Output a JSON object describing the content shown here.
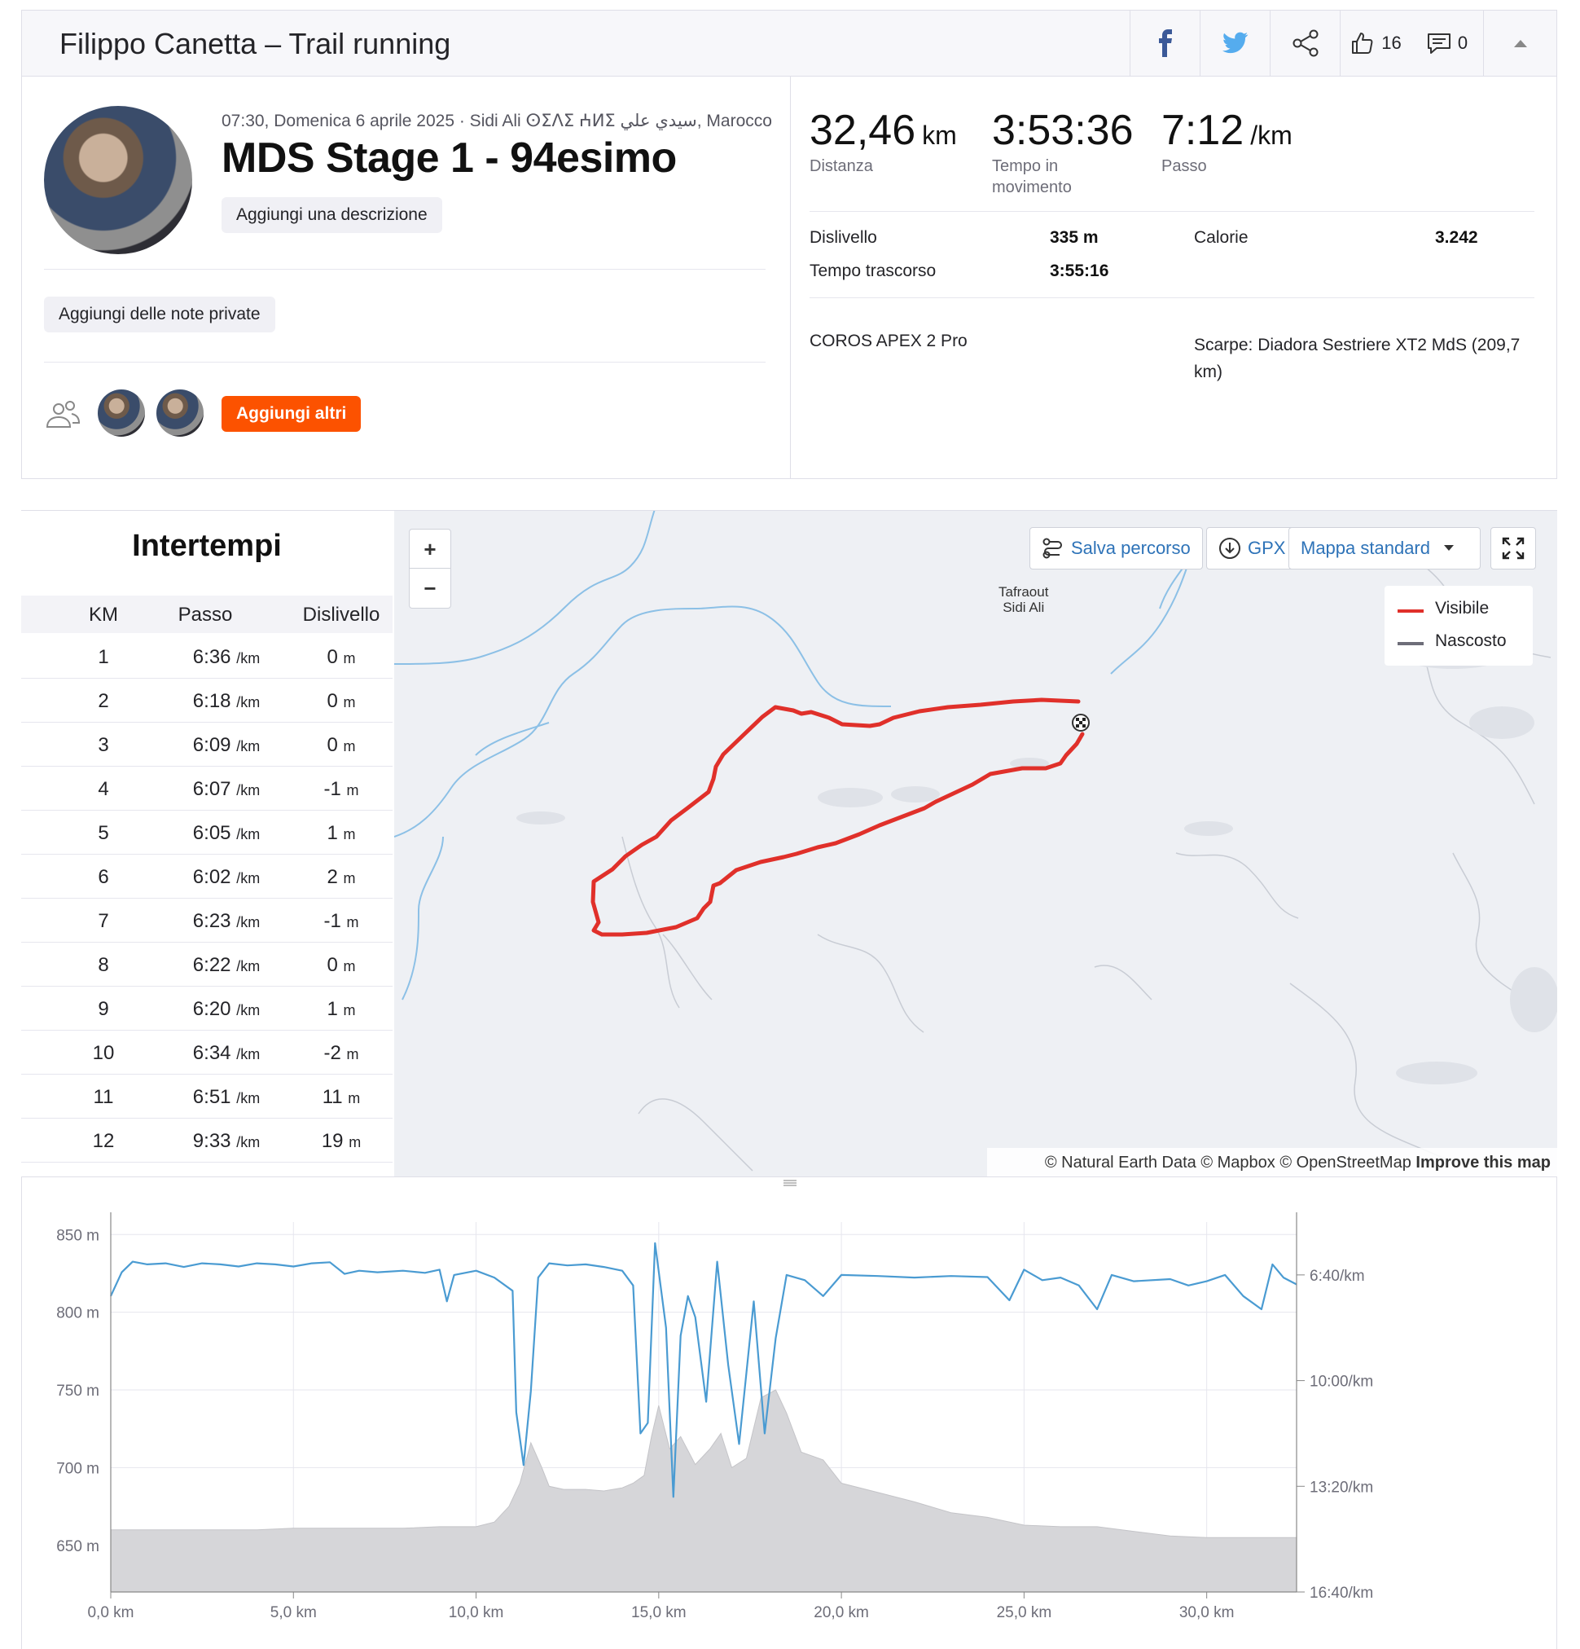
{
  "header": {
    "title": "Filippo Canetta – Trail running",
    "likes_count": "16",
    "comments_count": "0"
  },
  "activity": {
    "meta": "07:30, Domenica 6 aprile 2025 · Sidi Ali ⵙⵉⴷⵉ ⵄⵍⵉ سيدي علي, Marocco",
    "name": "MDS Stage 1 - 94esimo",
    "add_description_label": "Aggiungi una descrizione",
    "add_private_notes_label": "Aggiungi delle note private",
    "add_others_label": "Aggiungi altri"
  },
  "stats": {
    "distance": {
      "value": "32,46",
      "unit": "km",
      "label": "Distanza"
    },
    "moving_time": {
      "value": "3:53:36",
      "label_line1": "Tempo in",
      "label_line2": "movimento"
    },
    "pace": {
      "value": "7:12",
      "unit": "/km",
      "label": "Passo"
    },
    "elevation_label": "Dislivello",
    "elevation_value": "335 m",
    "calories_label": "Calorie",
    "calories_value": "3.242",
    "elapsed_label": "Tempo trascorso",
    "elapsed_value": "3:55:16",
    "device": "COROS APEX 2 Pro",
    "shoes_line1": "Scarpe: Diadora Sestriere XT2 MdS (209,7",
    "shoes_line2": "km)"
  },
  "splits": {
    "title": "Intertempi",
    "columns": {
      "km": "KM",
      "pace": "Passo",
      "elev": "Dislivello"
    },
    "pace_unit": "/km",
    "elev_unit": "m",
    "rows": [
      {
        "km": "1",
        "pace": "6:36",
        "elev": "0"
      },
      {
        "km": "2",
        "pace": "6:18",
        "elev": "0"
      },
      {
        "km": "3",
        "pace": "6:09",
        "elev": "0"
      },
      {
        "km": "4",
        "pace": "6:07",
        "elev": "-1"
      },
      {
        "km": "5",
        "pace": "6:05",
        "elev": "1"
      },
      {
        "km": "6",
        "pace": "6:02",
        "elev": "2"
      },
      {
        "km": "7",
        "pace": "6:23",
        "elev": "-1"
      },
      {
        "km": "8",
        "pace": "6:22",
        "elev": "0"
      },
      {
        "km": "9",
        "pace": "6:20",
        "elev": "1"
      },
      {
        "km": "10",
        "pace": "6:34",
        "elev": "-2"
      },
      {
        "km": "11",
        "pace": "6:51",
        "elev": "11"
      },
      {
        "km": "12",
        "pace": "9:33",
        "elev": "19"
      }
    ]
  },
  "map": {
    "save_route_label": "Salva percorso",
    "gpx_label": "GPX",
    "map_style_label": "Mappa standard",
    "zoom_in": "+",
    "zoom_out": "−",
    "legend_visible": "Visibile",
    "legend_hidden": "Nascosto",
    "place_line1": "Tafraout",
    "place_line2": "Sidi Ali",
    "attribution": "© Natural Earth Data © Mapbox © OpenStreetMap",
    "improve_label": "Improve this map",
    "route_color": "#e0302a",
    "river_color": "#8cc0e6"
  },
  "chart_data": {
    "type": "area",
    "x_label_unit": "km",
    "xlim": [
      0,
      32.46
    ],
    "x_ticks": [
      "0,0 km",
      "5,0 km",
      "10,0 km",
      "15,0 km",
      "20,0 km",
      "25,0 km",
      "30,0 km"
    ],
    "x_tick_values": [
      0,
      5,
      10,
      15,
      20,
      25,
      30
    ],
    "y_left_ticks": [
      "850 m",
      "800 m",
      "750 m",
      "700 m",
      "650 m"
    ],
    "y_left_values": [
      850,
      800,
      750,
      700,
      650
    ],
    "ylim_left": [
      620,
      858
    ],
    "y_right_ticks": [
      "6:40/km",
      "10:00/km",
      "13:20/km",
      "16:40/km"
    ],
    "y_right_values_sec": [
      400,
      600,
      800,
      1000
    ],
    "ylim_right_sec": [
      300,
      1000
    ],
    "elevation_color": "#d6d6d9",
    "pace_color": "#4a9bd2",
    "grid": true,
    "elevation": [
      [
        0,
        660
      ],
      [
        1,
        660
      ],
      [
        2,
        660
      ],
      [
        3,
        660
      ],
      [
        4,
        660
      ],
      [
        5,
        661
      ],
      [
        6,
        661
      ],
      [
        7,
        661
      ],
      [
        8,
        661
      ],
      [
        9,
        662
      ],
      [
        10,
        662
      ],
      [
        10.5,
        665
      ],
      [
        10.9,
        675
      ],
      [
        11.2,
        690
      ],
      [
        11.5,
        716
      ],
      [
        11.8,
        700
      ],
      [
        12.0,
        688
      ],
      [
        12.4,
        686
      ],
      [
        13,
        686
      ],
      [
        13.5,
        685
      ],
      [
        14.0,
        687
      ],
      [
        14.3,
        690
      ],
      [
        14.6,
        695
      ],
      [
        14.8,
        720
      ],
      [
        15.0,
        740
      ],
      [
        15.3,
        712
      ],
      [
        15.6,
        720
      ],
      [
        16.0,
        702
      ],
      [
        16.4,
        712
      ],
      [
        16.7,
        722
      ],
      [
        17.0,
        700
      ],
      [
        17.4,
        706
      ],
      [
        17.8,
        745
      ],
      [
        18.2,
        750
      ],
      [
        18.5,
        735
      ],
      [
        18.9,
        710
      ],
      [
        19.5,
        705
      ],
      [
        20,
        690
      ],
      [
        21,
        684
      ],
      [
        22,
        678
      ],
      [
        23,
        671
      ],
      [
        24,
        668
      ],
      [
        25,
        663
      ],
      [
        26,
        662
      ],
      [
        27,
        662
      ],
      [
        28,
        659
      ],
      [
        29,
        656
      ],
      [
        30,
        655
      ],
      [
        31,
        655
      ],
      [
        32.46,
        655
      ]
    ],
    "pace_sec_per_km": [
      [
        0,
        440
      ],
      [
        0.3,
        395
      ],
      [
        0.6,
        375
      ],
      [
        1,
        380
      ],
      [
        1.5,
        378
      ],
      [
        2,
        385
      ],
      [
        2.5,
        378
      ],
      [
        3,
        380
      ],
      [
        3.5,
        384
      ],
      [
        4,
        378
      ],
      [
        4.5,
        380
      ],
      [
        5,
        384
      ],
      [
        5.5,
        378
      ],
      [
        6,
        376
      ],
      [
        6.4,
        398
      ],
      [
        6.8,
        392
      ],
      [
        7.3,
        395
      ],
      [
        8,
        392
      ],
      [
        8.6,
        396
      ],
      [
        9.0,
        390
      ],
      [
        9.2,
        450
      ],
      [
        9.4,
        400
      ],
      [
        10,
        392
      ],
      [
        10.5,
        405
      ],
      [
        11.0,
        430
      ],
      [
        11.1,
        660
      ],
      [
        11.3,
        760
      ],
      [
        11.5,
        620
      ],
      [
        11.7,
        405
      ],
      [
        12.0,
        378
      ],
      [
        12.5,
        382
      ],
      [
        13,
        380
      ],
      [
        13.5,
        385
      ],
      [
        14.0,
        392
      ],
      [
        14.3,
        420
      ],
      [
        14.5,
        700
      ],
      [
        14.7,
        680
      ],
      [
        14.9,
        340
      ],
      [
        15.2,
        500
      ],
      [
        15.4,
        820
      ],
      [
        15.6,
        515
      ],
      [
        15.8,
        440
      ],
      [
        16.0,
        480
      ],
      [
        16.3,
        640
      ],
      [
        16.6,
        375
      ],
      [
        16.9,
        570
      ],
      [
        17.2,
        720
      ],
      [
        17.6,
        450
      ],
      [
        17.9,
        700
      ],
      [
        18.2,
        520
      ],
      [
        18.5,
        400
      ],
      [
        19,
        410
      ],
      [
        19.5,
        440
      ],
      [
        20,
        400
      ],
      [
        21,
        402
      ],
      [
        22,
        405
      ],
      [
        23,
        402
      ],
      [
        24,
        404
      ],
      [
        24.6,
        448
      ],
      [
        25,
        390
      ],
      [
        25.5,
        410
      ],
      [
        26,
        405
      ],
      [
        26.5,
        420
      ],
      [
        27,
        465
      ],
      [
        27.4,
        400
      ],
      [
        28,
        412
      ],
      [
        29,
        408
      ],
      [
        29.5,
        420
      ],
      [
        30,
        412
      ],
      [
        30.5,
        400
      ],
      [
        31,
        440
      ],
      [
        31.5,
        465
      ],
      [
        31.8,
        380
      ],
      [
        32.1,
        405
      ],
      [
        32.46,
        418
      ]
    ]
  }
}
